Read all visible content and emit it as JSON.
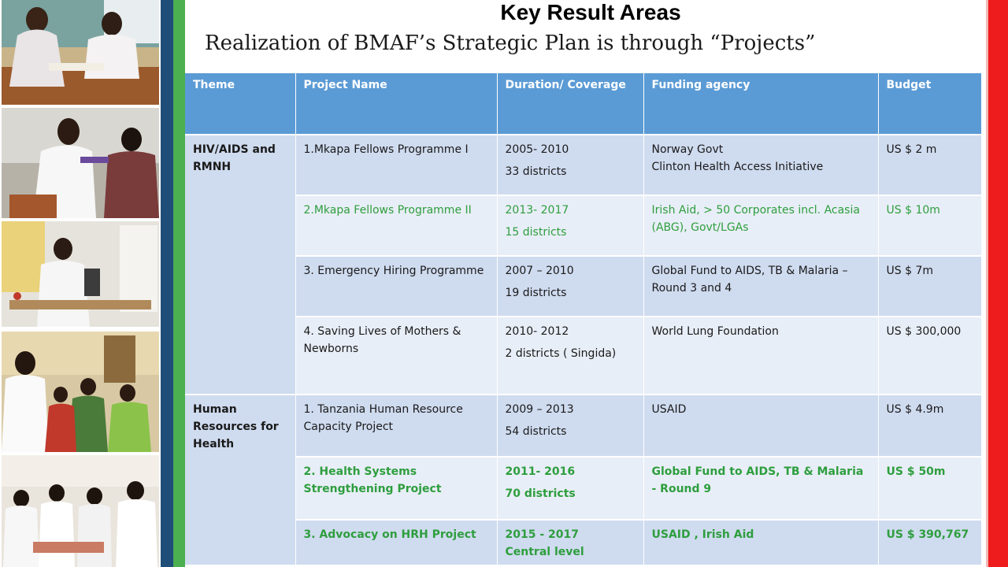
{
  "title": "Key Result Areas",
  "subtitle": "Realization of BMAF’s Strategic Plan is through “Projects”",
  "table": {
    "headers": [
      "Theme",
      "Project Name",
      "Duration/ Coverage",
      "Funding agency",
      "Budget"
    ],
    "themes": [
      "HIV/AIDS and RMNH",
      "Human Resources for Health"
    ],
    "rows": [
      {
        "project": "1.Mkapa Fellows Programme I",
        "duration": "2005- 2010",
        "coverage": "33 districts",
        "funding1": "Norway Govt",
        "funding2": "Clinton Health Access Initiative",
        "budget": "US $ 2 m"
      },
      {
        "project": "2.Mkapa Fellows Programme II",
        "duration": "2013- 2017",
        "coverage": "15 districts",
        "funding1": "Irish Aid, > 50 Corporates incl. Acasia (ABG), Govt/LGAs",
        "budget": "US $ 10m"
      },
      {
        "project": "3. Emergency Hiring Programme",
        "duration": "2007 – 2010",
        "coverage": "19 districts",
        "funding1": "Global Fund to AIDS, TB & Malaria – Round 3 and 4",
        "budget": "US $ 7m"
      },
      {
        "project": "4. Saving Lives of Mothers & Newborns",
        "duration": "2010- 2012",
        "coverage": "2 districts ( Singida)",
        "funding1": "World Lung Foundation",
        "budget": "US $ 300,000"
      },
      {
        "project": "1. Tanzania Human Resource Capacity Project",
        "duration": "2009 – 2013",
        "coverage": "54 districts",
        "funding1": "USAID",
        "budget": "US $ 4.9m"
      },
      {
        "project": "2. Health Systems Strengthening Project",
        "duration": "2011- 2016",
        "coverage": "70 districts",
        "funding1": "Global Fund to AIDS, TB & Malaria - Round 9",
        "budget": "US $ 50m"
      },
      {
        "project": "3. Advocacy on HRH Project",
        "duration": "2015 - 2017",
        "coverage": "Central  level",
        "funding1": "USAID , Irish Aid",
        "budget": "US $ 390,767"
      }
    ]
  },
  "colors": {
    "header": "#5b9bd5",
    "row_dark": "#cfdbef",
    "row_light": "#e8eef7",
    "highlight_text": "#2e9e3e",
    "stripe_blue": "#1f4e79",
    "stripe_green": "#4caf50",
    "stripe_red": "#ee1c1c"
  }
}
